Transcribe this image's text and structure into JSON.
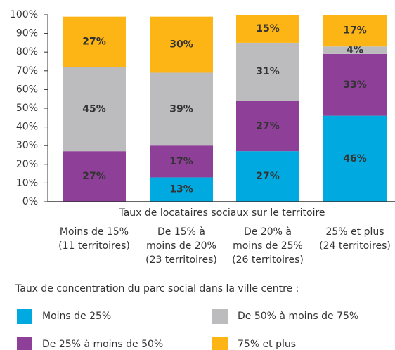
{
  "chart_data": {
    "type": "stacked_bar",
    "x_label": "Taux de locataires sociaux sur le territoire",
    "legend_title": "Taux de concentration du parc social dans la ville centre :",
    "categories": [
      [
        "Moins de 15%",
        "(11 territoires)"
      ],
      [
        "De 15% à",
        "moins de 20%",
        "(23 territoires)"
      ],
      [
        "De 20% à",
        "moins de 25%",
        "(26 territoires)"
      ],
      [
        "25% et plus",
        "(24 territoires)"
      ]
    ],
    "series": [
      {
        "name": "Moins de 25%",
        "color": "#00a9e0",
        "values": [
          null,
          13,
          27,
          46
        ],
        "value_labels": [
          null,
          "13%",
          "27%",
          "46%"
        ]
      },
      {
        "name": "De 25% à moins de 50%",
        "color": "#8e3f98",
        "values": [
          27,
          17,
          27,
          33
        ],
        "value_labels": [
          "27%",
          "17%",
          "27%",
          "33%"
        ]
      },
      {
        "name": "De 50% à moins de 75%",
        "color": "#bcbcbe",
        "values": [
          45,
          39,
          31,
          4
        ],
        "value_labels": [
          "45%",
          "39%",
          "31%",
          "4%"
        ]
      },
      {
        "name": "75% et plus",
        "color": "#fdb515",
        "values": [
          27,
          30,
          15,
          17
        ],
        "value_labels": [
          "27%",
          "30%",
          "15%",
          "17%"
        ]
      }
    ],
    "ylim": [
      0,
      100
    ],
    "yticks": [
      {
        "value": 0,
        "label": "0%"
      },
      {
        "value": 10,
        "label": "10%"
      },
      {
        "value": 20,
        "label": "20%"
      },
      {
        "value": 30,
        "label": "30%"
      },
      {
        "value": 40,
        "label": "40%"
      },
      {
        "value": 50,
        "label": "50%"
      },
      {
        "value": 60,
        "label": "60%"
      },
      {
        "value": 70,
        "label": "70%"
      },
      {
        "value": 80,
        "label": "80%"
      },
      {
        "value": 90,
        "label": "90%"
      },
      {
        "value": 100,
        "label": "100%"
      }
    ]
  }
}
